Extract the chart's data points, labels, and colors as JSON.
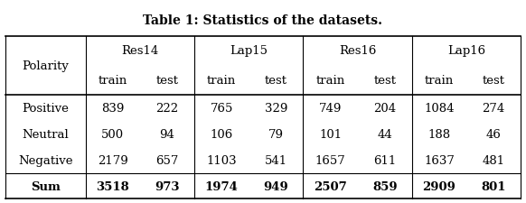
{
  "title": "Table 1: Statistics of the datasets.",
  "col_groups": [
    "Res14",
    "Lap15",
    "Res16",
    "Lap16"
  ],
  "col_sub": [
    "train",
    "test"
  ],
  "row_labels": [
    "Polarity",
    "Positive",
    "Neutral",
    "Negative",
    "Sum"
  ],
  "data": {
    "Positive": {
      "Res14": [
        839,
        222
      ],
      "Lap15": [
        765,
        329
      ],
      "Res16": [
        749,
        204
      ],
      "Lap16": [
        1084,
        274
      ]
    },
    "Neutral": {
      "Res14": [
        500,
        94
      ],
      "Lap15": [
        106,
        79
      ],
      "Res16": [
        101,
        44
      ],
      "Lap16": [
        188,
        46
      ]
    },
    "Negative": {
      "Res14": [
        2179,
        657
      ],
      "Lap15": [
        1103,
        541
      ],
      "Res16": [
        1657,
        611
      ],
      "Lap16": [
        1637,
        481
      ]
    },
    "Sum": {
      "Res14": [
        3518,
        973
      ],
      "Lap15": [
        1974,
        949
      ],
      "Res16": [
        2507,
        859
      ],
      "Lap16": [
        2909,
        801
      ]
    }
  },
  "sum_bold": true,
  "bg_color": "white",
  "font_family": "serif"
}
